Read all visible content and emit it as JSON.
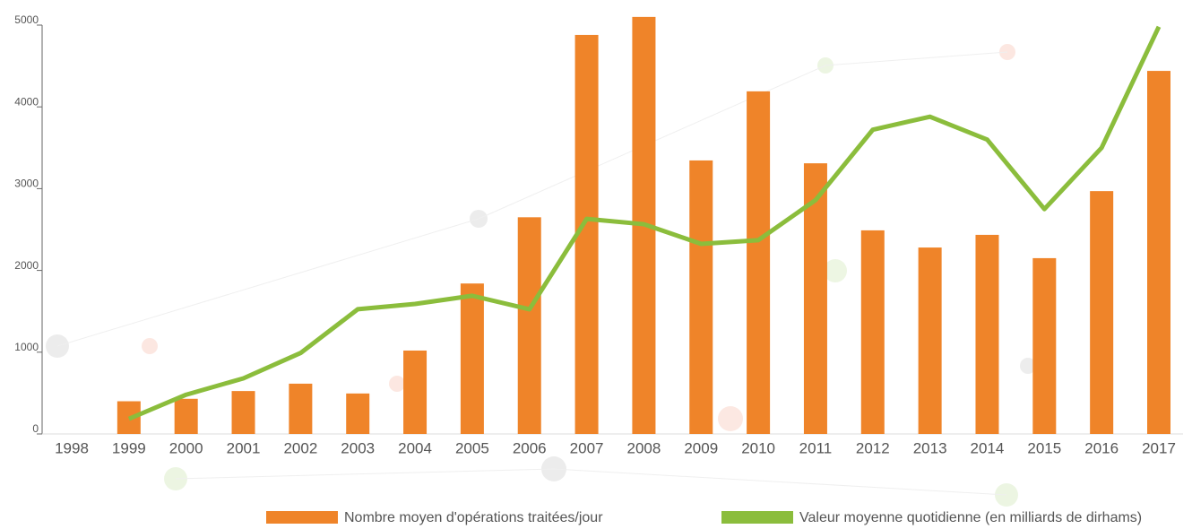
{
  "chart_data": {
    "type": "bar_line",
    "categories": [
      "1998",
      "1999",
      "2000",
      "2001",
      "2002",
      "2003",
      "2004",
      "2005",
      "2006",
      "2007",
      "2008",
      "2009",
      "2010",
      "2011",
      "2012",
      "2013",
      "2014",
      "2015",
      "2016",
      "2017"
    ],
    "series": [
      {
        "name": "Nombre  moyen d'opérations traitées/jour",
        "color": "#ef8429",
        "type": "bar",
        "values": [
          null,
          400,
          430,
          525,
          615,
          495,
          1020,
          1840,
          2650,
          4880,
          5100,
          3345,
          4190,
          3310,
          2490,
          2280,
          2435,
          2150,
          2970,
          4440
        ]
      },
      {
        "name": "Valeur moyenne quotidienne (en milliards de dirhams)",
        "color": "#8bbd3c",
        "type": "line",
        "values": [
          null,
          185,
          480,
          680,
          990,
          1525,
          1590,
          1690,
          1525,
          2630,
          2565,
          2325,
          2370,
          2860,
          3720,
          3880,
          3600,
          2750,
          3500,
          4980
        ]
      }
    ],
    "ylim": [
      0,
      5000
    ],
    "yticks": [
      0,
      1000,
      2000,
      3000,
      4000,
      5000
    ],
    "legend": "bottom"
  }
}
